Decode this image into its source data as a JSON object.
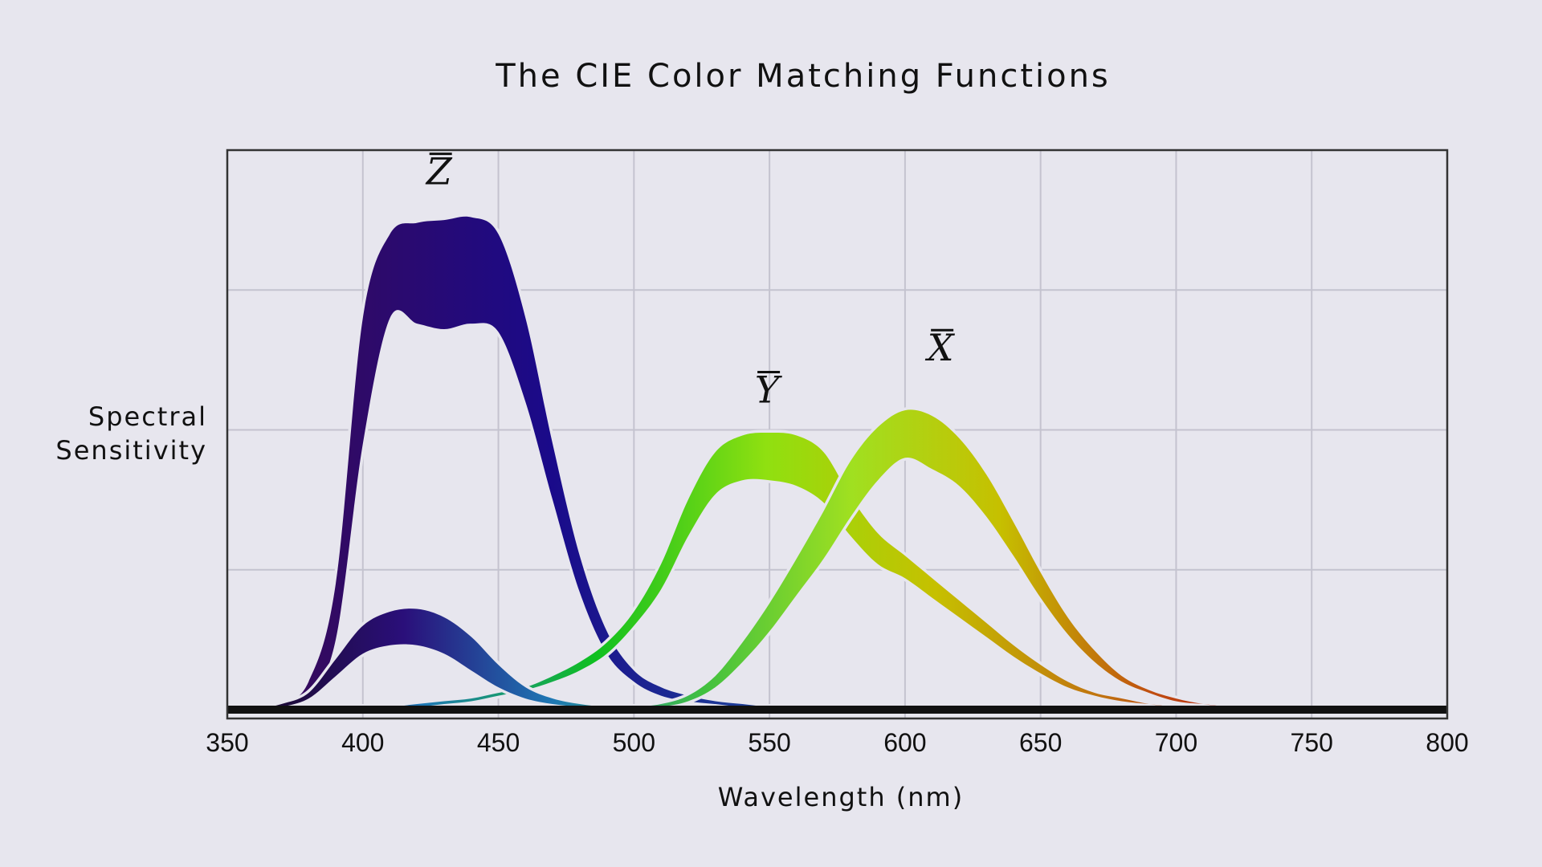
{
  "chart_data": {
    "type": "area",
    "title": "The CIE Color Matching Functions",
    "xlabel": "Wavelength (nm)",
    "ylabel_line1": "Spectral",
    "ylabel_line2": "Sensitivity",
    "xlim": [
      350,
      800
    ],
    "ylim": [
      0,
      2
    ],
    "x_ticks": [
      350,
      400,
      450,
      500,
      550,
      600,
      650,
      700,
      750,
      800
    ],
    "y_ticks": [],
    "grid": true,
    "series_labels_note": "curves are labelled with overbarred letters",
    "x": [
      360,
      370,
      380,
      390,
      400,
      410,
      420,
      430,
      440,
      450,
      460,
      470,
      480,
      490,
      500,
      510,
      520,
      530,
      540,
      550,
      560,
      570,
      580,
      590,
      600,
      610,
      620,
      630,
      640,
      650,
      660,
      670,
      680,
      690,
      700,
      710,
      720,
      730,
      740,
      750,
      760,
      770,
      780,
      790,
      800
    ],
    "series": [
      {
        "name": "Z̄",
        "letter": "Z",
        "colors": [
          "#3a0a55",
          "#1a0a8a",
          "#1f5aa0",
          "#27a0a8",
          "#2bb07a"
        ],
        "lower": [
          0,
          0.01,
          0.05,
          0.25,
          0.95,
          1.4,
          1.38,
          1.36,
          1.38,
          1.35,
          1.1,
          0.75,
          0.42,
          0.2,
          0.1,
          0.05,
          0.03,
          0.02,
          0.01,
          0.01,
          0,
          0,
          0,
          0,
          0,
          0,
          0,
          0,
          0,
          0,
          0,
          0,
          0,
          0,
          0,
          0,
          0,
          0,
          0,
          0,
          0,
          0,
          0,
          0,
          0
        ],
        "upper": [
          0,
          0.02,
          0.1,
          0.45,
          1.4,
          1.7,
          1.74,
          1.75,
          1.76,
          1.7,
          1.4,
          0.95,
          0.55,
          0.28,
          0.14,
          0.08,
          0.05,
          0.03,
          0.02,
          0.01,
          0.01,
          0,
          0,
          0,
          0,
          0,
          0,
          0,
          0,
          0,
          0,
          0,
          0,
          0,
          0,
          0,
          0,
          0,
          0,
          0,
          0,
          0,
          0,
          0,
          0
        ]
      },
      {
        "name": "Ȳ",
        "letter": "Y",
        "colors": [
          "#2a0f7a",
          "#1e78b4",
          "#10c020",
          "#90e010",
          "#c6c000",
          "#c07010",
          "#b00010",
          "#1a0000"
        ],
        "lower": [
          0,
          0,
          0,
          0,
          0,
          0.01,
          0.01,
          0.02,
          0.03,
          0.05,
          0.07,
          0.1,
          0.14,
          0.2,
          0.3,
          0.43,
          0.62,
          0.77,
          0.82,
          0.82,
          0.8,
          0.74,
          0.62,
          0.52,
          0.47,
          0.4,
          0.33,
          0.26,
          0.19,
          0.13,
          0.08,
          0.05,
          0.03,
          0.02,
          0.01,
          0.01,
          0,
          0,
          0,
          0,
          0,
          0,
          0,
          0,
          0
        ],
        "upper": [
          0,
          0,
          0,
          0,
          0.01,
          0.01,
          0.02,
          0.03,
          0.04,
          0.06,
          0.08,
          0.12,
          0.17,
          0.24,
          0.35,
          0.52,
          0.75,
          0.92,
          0.98,
          0.99,
          0.98,
          0.92,
          0.76,
          0.63,
          0.55,
          0.47,
          0.39,
          0.31,
          0.23,
          0.16,
          0.1,
          0.06,
          0.04,
          0.02,
          0.01,
          0.01,
          0,
          0,
          0,
          0,
          0,
          0,
          0,
          0,
          0
        ]
      },
      {
        "name": "X̄",
        "letter": "X",
        "colors": [
          "#1a0a2a",
          "#2a0f7a",
          "#1e78b4",
          "#40c040",
          "#a0e020",
          "#c6c000",
          "#c05010",
          "#b00010",
          "#1a0000"
        ],
        "lower": [
          0,
          0.01,
          0.04,
          0.12,
          0.2,
          0.23,
          0.23,
          0.2,
          0.14,
          0.08,
          0.04,
          0.02,
          0.01,
          0,
          0,
          0.01,
          0.03,
          0.08,
          0.17,
          0.28,
          0.41,
          0.54,
          0.69,
          0.82,
          0.9,
          0.86,
          0.8,
          0.69,
          0.55,
          0.4,
          0.27,
          0.17,
          0.1,
          0.06,
          0.03,
          0.02,
          0.01,
          0.01,
          0,
          0,
          0,
          0,
          0,
          0,
          0
        ],
        "upper": [
          0,
          0.02,
          0.06,
          0.18,
          0.3,
          0.35,
          0.36,
          0.33,
          0.26,
          0.16,
          0.08,
          0.04,
          0.02,
          0.01,
          0.01,
          0.02,
          0.05,
          0.12,
          0.24,
          0.38,
          0.54,
          0.71,
          0.89,
          1.01,
          1.07,
          1.05,
          0.97,
          0.84,
          0.67,
          0.49,
          0.33,
          0.21,
          0.12,
          0.07,
          0.04,
          0.02,
          0.01,
          0.01,
          0,
          0,
          0,
          0,
          0,
          0,
          0
        ]
      }
    ]
  }
}
